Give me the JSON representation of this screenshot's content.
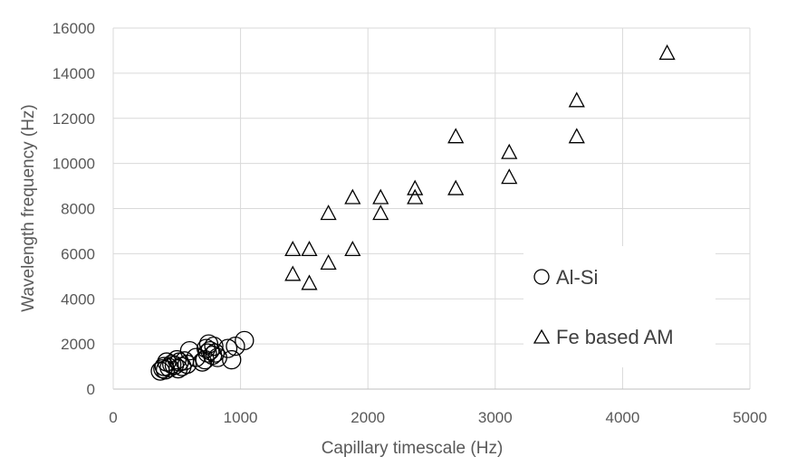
{
  "chart_data": {
    "type": "scatter",
    "xlabel": "Capillary timescale (Hz)",
    "ylabel": "Wavelength frequency (Hz)",
    "xlim": [
      0,
      5000
    ],
    "ylim": [
      0,
      16000
    ],
    "x_ticks": [
      0,
      1000,
      2000,
      3000,
      4000,
      5000
    ],
    "y_ticks": [
      0,
      2000,
      4000,
      6000,
      8000,
      10000,
      12000,
      14000,
      16000
    ],
    "grid": true,
    "legend_position": "right",
    "series": [
      {
        "name": "Al-Si",
        "marker": "circle",
        "color": "#000000",
        "points": [
          [
            370,
            800
          ],
          [
            390,
            900
          ],
          [
            400,
            1000
          ],
          [
            410,
            850
          ],
          [
            420,
            1200
          ],
          [
            440,
            950
          ],
          [
            460,
            1100
          ],
          [
            480,
            1050
          ],
          [
            500,
            1300
          ],
          [
            510,
            900
          ],
          [
            520,
            1200
          ],
          [
            540,
            1000
          ],
          [
            560,
            1250
          ],
          [
            580,
            1100
          ],
          [
            600,
            1700
          ],
          [
            650,
            1400
          ],
          [
            700,
            1200
          ],
          [
            720,
            1300
          ],
          [
            730,
            1800
          ],
          [
            740,
            1600
          ],
          [
            750,
            2000
          ],
          [
            760,
            1700
          ],
          [
            780,
            1500
          ],
          [
            790,
            1900
          ],
          [
            800,
            1600
          ],
          [
            820,
            1400
          ],
          [
            900,
            1800
          ],
          [
            930,
            1300
          ],
          [
            960,
            1900
          ],
          [
            1030,
            2150
          ]
        ]
      },
      {
        "name": "Fe based AM",
        "marker": "triangle",
        "color": "#000000",
        "points": [
          [
            1410,
            6200
          ],
          [
            1410,
            5100
          ],
          [
            1540,
            6200
          ],
          [
            1540,
            4700
          ],
          [
            1690,
            7800
          ],
          [
            1690,
            5600
          ],
          [
            1880,
            8500
          ],
          [
            1880,
            6200
          ],
          [
            2100,
            8500
          ],
          [
            2100,
            7800
          ],
          [
            2370,
            8900
          ],
          [
            2370,
            8500
          ],
          [
            2690,
            11200
          ],
          [
            2690,
            8900
          ],
          [
            3110,
            10500
          ],
          [
            3110,
            9400
          ],
          [
            3640,
            12800
          ],
          [
            3640,
            11200
          ],
          [
            4350,
            14900
          ]
        ]
      }
    ]
  }
}
